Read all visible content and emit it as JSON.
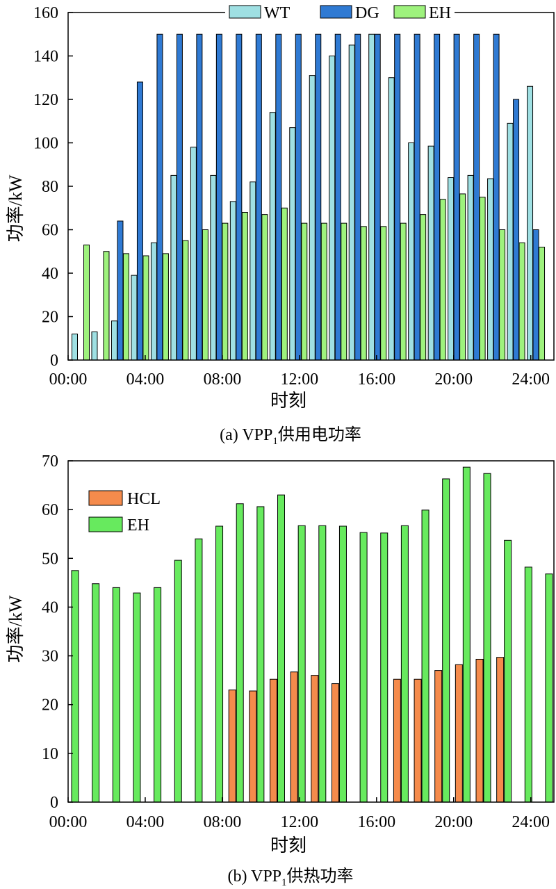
{
  "chart_data": [
    {
      "type": "bar",
      "caption": {
        "prefix": "(a) VPP",
        "sub": "1",
        "suffix": "供用电功率"
      },
      "xlabel": "时刻",
      "ylabel": "功率/kW",
      "x": [
        1,
        2,
        3,
        4,
        5,
        6,
        7,
        8,
        9,
        10,
        11,
        12,
        13,
        14,
        15,
        16,
        17,
        18,
        19,
        20,
        21,
        22,
        23,
        24
      ],
      "xlim": [
        0,
        25.2
      ],
      "xticks": [
        0,
        4,
        8,
        12,
        16,
        20,
        24
      ],
      "xtick_labels": [
        "00:00",
        "04:00",
        "08:00",
        "12:00",
        "16:00",
        "20:00",
        "24:00"
      ],
      "ylim": [
        0,
        160
      ],
      "yticks": [
        0,
        20,
        40,
        60,
        80,
        100,
        120,
        140,
        160
      ],
      "grid": false,
      "legend": "top-center",
      "series": [
        {
          "name": "WT",
          "color": "#9FE0E3",
          "values": [
            12,
            13,
            18,
            39,
            54,
            85,
            98,
            85,
            73,
            82,
            114,
            107,
            131,
            140,
            145,
            150,
            130,
            100,
            98.5,
            84,
            85,
            83.5,
            109,
            126
          ]
        },
        {
          "name": "DG",
          "color": "#2F7AD3",
          "values": [
            0,
            0,
            64,
            128,
            150,
            150,
            150,
            150,
            150,
            150,
            150,
            150,
            150,
            150,
            150,
            150,
            150,
            150,
            150,
            150,
            150,
            150,
            120,
            60
          ]
        },
        {
          "name": "EH",
          "color": "#9EF27D",
          "values": [
            53,
            50,
            49,
            48,
            49,
            55,
            60,
            63,
            68,
            67,
            70,
            63,
            63,
            63,
            61.5,
            61.5,
            63,
            67,
            74,
            76.5,
            75,
            60,
            54,
            52
          ]
        }
      ]
    },
    {
      "type": "bar",
      "caption": {
        "prefix": "(b) VPP",
        "sub": "1",
        "suffix": "供热功率"
      },
      "xlabel": "时刻",
      "ylabel": "功率/kW",
      "x": [
        1,
        2,
        3,
        4,
        5,
        6,
        7,
        8,
        9,
        10,
        11,
        12,
        13,
        14,
        15,
        16,
        17,
        18,
        19,
        20,
        21,
        22,
        23,
        24
      ],
      "xlim": [
        0,
        25.2
      ],
      "xticks": [
        0,
        4,
        8,
        12,
        16,
        20,
        24
      ],
      "xtick_labels": [
        "00:00",
        "04:00",
        "08:00",
        "12:00",
        "16:00",
        "20:00",
        "24:00"
      ],
      "ylim": [
        0,
        70
      ],
      "yticks": [
        0,
        10,
        20,
        30,
        40,
        50,
        60,
        70
      ],
      "grid": false,
      "legend": "top-left",
      "series": [
        {
          "name": "HCL",
          "color": "#F58B4C",
          "values": [
            0,
            0,
            0,
            0,
            0,
            0,
            0,
            0,
            23,
            22.8,
            25.2,
            26.7,
            26,
            24.3,
            0,
            0,
            25.2,
            25.2,
            27,
            28.2,
            29.3,
            29.7,
            0,
            0
          ]
        },
        {
          "name": "EH",
          "color": "#67EA5E",
          "values": [
            47.5,
            44.8,
            44,
            42.9,
            44,
            49.6,
            54,
            56.6,
            61.2,
            60.6,
            63,
            56.7,
            56.7,
            56.6,
            55.3,
            55.2,
            56.7,
            59.9,
            66.3,
            68.7,
            67.4,
            53.7,
            48.2,
            46.8
          ]
        }
      ]
    }
  ]
}
